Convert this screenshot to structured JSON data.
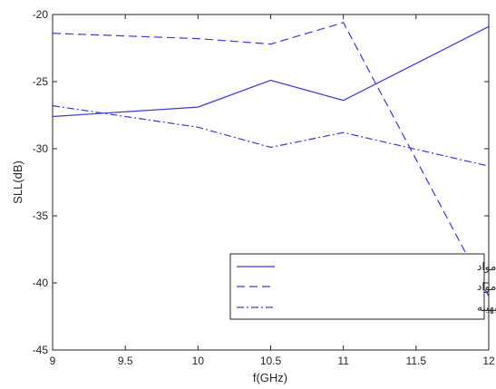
{
  "chart_data": {
    "type": "line",
    "xlabel": "f(GHz)",
    "ylabel": "SLL(dB)",
    "xlim": [
      9,
      12
    ],
    "ylim": [
      -45,
      -20
    ],
    "x": [
      9,
      10,
      10.5,
      11,
      12
    ],
    "xticks": [
      9,
      9.5,
      10,
      10.5,
      11,
      11.5,
      12
    ],
    "xtick_labels": [
      "9",
      "9.5",
      "10",
      "10.5",
      "11",
      "11.5",
      "12"
    ],
    "yticks": [
      -20,
      -25,
      -30,
      -35,
      -40,
      -45
    ],
    "ytick_labels": [
      "-20",
      "-25",
      "-30",
      "-35",
      "-40",
      "-45"
    ],
    "grid": false,
    "legend_position": "bottom-right",
    "series": [
      {
        "name": "آنتن کوتاه شده با لنز فراموا‌د",
        "style": "solid",
        "color": "#3a3ad6",
        "values": [
          -27.6,
          -26.9,
          -24.9,
          -26.4,
          -20.9
        ]
      },
      {
        "name": "آنتن کوتاه شده بدون لنز فراموا‌د",
        "style": "dashed",
        "color": "#3a3ad6",
        "values": [
          -21.4,
          -21.8,
          -22.2,
          -20.6,
          -41.0
        ]
      },
      {
        "name": "آنتن با طول بهینه",
        "style": "dashdot",
        "color": "#3a3ad6",
        "values": [
          -26.8,
          -28.4,
          -29.9,
          -28.8,
          -31.3
        ]
      }
    ]
  }
}
